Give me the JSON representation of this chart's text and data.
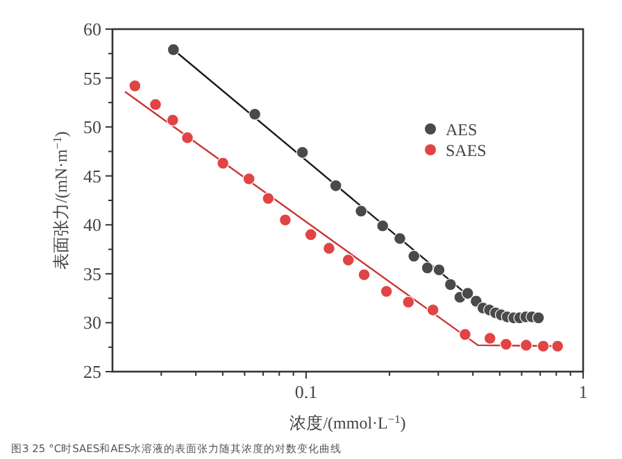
{
  "chart_data": {
    "type": "scatter",
    "xlabel": "浓度/(mmol·L$^{−1}$)",
    "ylabel": "表面张力/(mN·m$^{−1}$)",
    "annotations": [
      "图3 25 °C时SAES和AES水溶液的表面张力随其浓度的对数变化曲线"
    ],
    "xlim": [
      0.02,
      1
    ],
    "ylim": [
      25,
      60
    ],
    "xticks": [
      0.1,
      1
    ],
    "yticks": [
      25,
      30,
      35,
      40,
      45,
      50,
      55,
      60
    ],
    "log": "x",
    "grid": false,
    "legend": "top right",
    "series": [
      {
        "name": "AES",
        "marker": "circle",
        "color": "#4a4a4a",
        "x": [
          0.0332,
          0.0653,
          0.097,
          0.128,
          0.158,
          0.189,
          0.218,
          0.245,
          0.274,
          0.302,
          0.332,
          0.359,
          0.383,
          0.411,
          0.435,
          0.459,
          0.483,
          0.506,
          0.532,
          0.562,
          0.59,
          0.621,
          0.653,
          0.69
        ],
        "values": [
          57.9,
          51.3,
          47.4,
          44.0,
          41.4,
          39.9,
          38.6,
          36.8,
          35.6,
          35.4,
          33.9,
          32.6,
          33.0,
          32.2,
          31.5,
          31.3,
          31.0,
          30.8,
          30.6,
          30.5,
          30.5,
          30.6,
          30.6,
          30.5
        ]
      },
      {
        "name": "SAES",
        "marker": "circle",
        "color": "#e04444",
        "x": [
          0.0241,
          0.0286,
          0.033,
          0.0373,
          0.0501,
          0.0622,
          0.073,
          0.0841,
          0.104,
          0.121,
          0.142,
          0.162,
          0.195,
          0.234,
          0.287,
          0.375,
          0.461,
          0.527,
          0.623,
          0.718,
          0.809
        ],
        "values": [
          54.2,
          52.3,
          50.7,
          48.9,
          46.3,
          44.7,
          42.7,
          40.5,
          39.0,
          37.6,
          36.4,
          34.9,
          33.2,
          32.1,
          31.3,
          28.8,
          28.4,
          27.8,
          27.7,
          27.6,
          27.6
        ]
      },
      {
        "type": "line",
        "color": "#1a1a1a",
        "line_style": "solid",
        "x": [
          0.0332,
          0.44
        ],
        "values": [
          57.9,
          31.4
        ]
      },
      {
        "type": "line",
        "color": "#cc3333",
        "line_style": "solid",
        "x": [
          0.0222,
          0.417,
          0.841
        ],
        "values": [
          53.6,
          27.7,
          27.6
        ]
      }
    ]
  }
}
